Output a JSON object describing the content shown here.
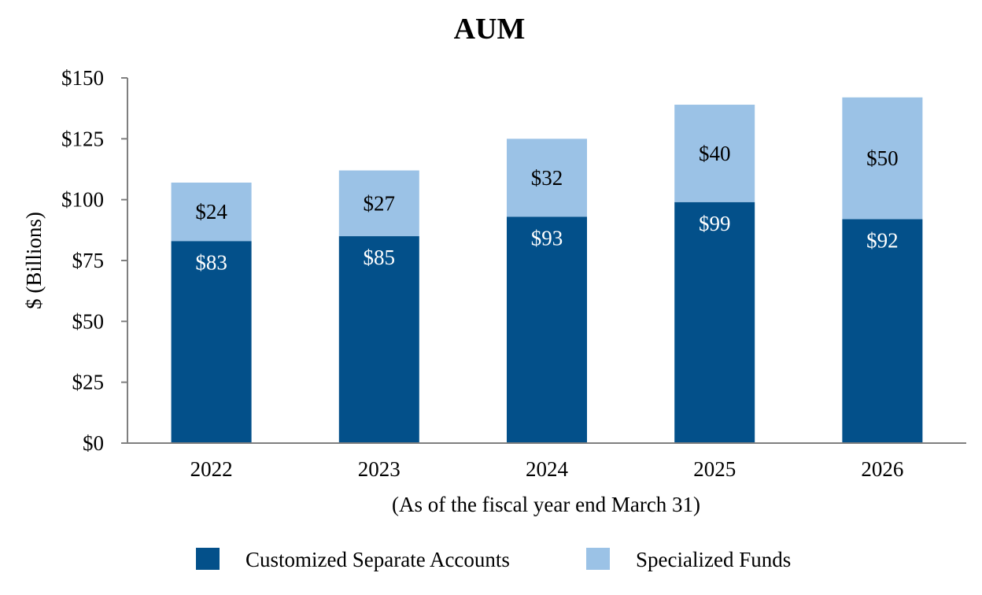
{
  "chart_data": {
    "type": "bar",
    "stacked": true,
    "title": "AUM",
    "xlabel": "(As of the fiscal year end March 31)",
    "ylabel": "$ (Billions)",
    "ylim": [
      0,
      150
    ],
    "yticks": [
      0,
      25,
      50,
      75,
      100,
      125,
      150
    ],
    "ytick_labels": [
      "$0",
      "$25",
      "$50",
      "$75",
      "$100",
      "$125",
      "$150"
    ],
    "categories": [
      "2022",
      "2023",
      "2024",
      "2025",
      "2026"
    ],
    "series": [
      {
        "name": "Customized Separate Accounts",
        "color": "#03508a",
        "label_color": "#ffffff",
        "values": [
          83,
          85,
          93,
          99,
          92
        ],
        "labels": [
          "$83",
          "$85",
          "$93",
          "$99",
          "$92"
        ]
      },
      {
        "name": "Specialized Funds",
        "color": "#9bc2e6",
        "label_color": "#000000",
        "values": [
          24,
          27,
          32,
          40,
          50
        ],
        "labels": [
          "$24",
          "$27",
          "$32",
          "$40",
          "$50"
        ]
      }
    ],
    "legend_position": "bottom",
    "grid": false,
    "axis_color": "#7f7f7f"
  }
}
